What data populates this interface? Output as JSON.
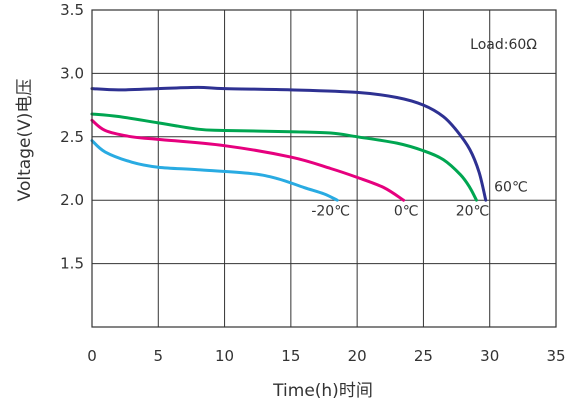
{
  "chart_data": {
    "type": "line",
    "title": "",
    "xlabel": "Time(h)时间",
    "ylabel": "Voltage(V)电压",
    "xlim": [
      0,
      35
    ],
    "ylim": [
      1.0,
      3.5
    ],
    "x_ticks": [
      0,
      5,
      10,
      15,
      20,
      25,
      30,
      35
    ],
    "y_ticks": [
      1.5,
      2.0,
      2.5,
      3.0,
      3.5
    ],
    "grid": true,
    "legend": "none",
    "annotation": "Load:60Ω",
    "series": [
      {
        "name": "60℃",
        "color": "#2e3192",
        "points": [
          [
            0,
            2.88
          ],
          [
            2,
            2.87
          ],
          [
            5,
            2.88
          ],
          [
            8,
            2.89
          ],
          [
            10,
            2.88
          ],
          [
            15,
            2.87
          ],
          [
            20,
            2.85
          ],
          [
            23,
            2.81
          ],
          [
            25,
            2.75
          ],
          [
            26.5,
            2.66
          ],
          [
            27.5,
            2.55
          ],
          [
            28.5,
            2.4
          ],
          [
            29.2,
            2.22
          ],
          [
            29.7,
            2.0
          ]
        ]
      },
      {
        "name": "20℃",
        "color": "#00a651",
        "points": [
          [
            0,
            2.68
          ],
          [
            2,
            2.66
          ],
          [
            5,
            2.61
          ],
          [
            8,
            2.56
          ],
          [
            10,
            2.55
          ],
          [
            15,
            2.54
          ],
          [
            18,
            2.53
          ],
          [
            20,
            2.5
          ],
          [
            23,
            2.45
          ],
          [
            25,
            2.39
          ],
          [
            26.5,
            2.32
          ],
          [
            27.8,
            2.2
          ],
          [
            28.5,
            2.1
          ],
          [
            29,
            2.0
          ]
        ]
      },
      {
        "name": "0℃",
        "color": "#e6007e",
        "points": [
          [
            0,
            2.63
          ],
          [
            1,
            2.55
          ],
          [
            3,
            2.5
          ],
          [
            5,
            2.48
          ],
          [
            10,
            2.43
          ],
          [
            15,
            2.34
          ],
          [
            18,
            2.25
          ],
          [
            20,
            2.18
          ],
          [
            22,
            2.1
          ],
          [
            23.5,
            2.0
          ]
        ]
      },
      {
        "name": "-20℃",
        "color": "#29abe2",
        "points": [
          [
            0,
            2.47
          ],
          [
            1,
            2.38
          ],
          [
            3,
            2.3
          ],
          [
            5,
            2.26
          ],
          [
            8,
            2.24
          ],
          [
            12,
            2.21
          ],
          [
            14,
            2.17
          ],
          [
            16,
            2.1
          ],
          [
            17.5,
            2.05
          ],
          [
            18.5,
            2.0
          ]
        ]
      }
    ],
    "curve_labels": [
      {
        "text": "-20℃",
        "x": 18,
        "y": 1.88
      },
      {
        "text": "0℃",
        "x": 23.7,
        "y": 1.88
      },
      {
        "text": "20℃",
        "x": 28.7,
        "y": 1.88
      },
      {
        "text": "60℃",
        "x": 31.6,
        "y": 2.07
      }
    ]
  }
}
